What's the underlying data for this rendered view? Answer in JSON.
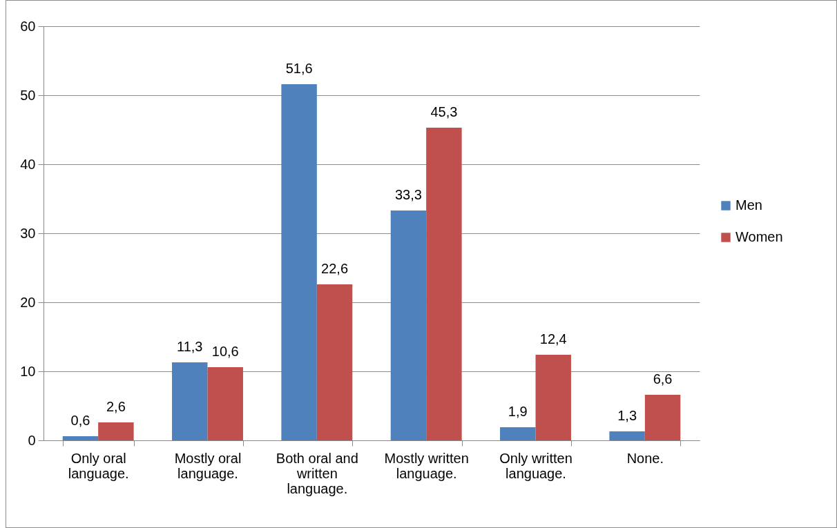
{
  "chart_data": {
    "type": "bar",
    "categories": [
      "Only oral language.",
      "Mostly oral language.",
      "Both oral and written language.",
      "Mostly written language.",
      "Only written language.",
      "None."
    ],
    "series": [
      {
        "name": "Men",
        "color": "#4f81bd",
        "values": [
          0.6,
          11.3,
          51.6,
          33.3,
          1.9,
          1.3
        ],
        "value_labels": [
          "0,6",
          "11,3",
          "51,6",
          "33,3",
          "1,9",
          "1,3"
        ]
      },
      {
        "name": "Women",
        "color": "#c0504d",
        "values": [
          2.6,
          10.6,
          22.6,
          45.3,
          12.4,
          6.6
        ],
        "value_labels": [
          "2,6",
          "10,6",
          "22,6",
          "45,3",
          "12,4",
          "6,6"
        ]
      }
    ],
    "ylim": [
      0,
      60
    ],
    "yticks": [
      0,
      10,
      20,
      30,
      40,
      50,
      60
    ],
    "grid": "y",
    "legend": "right"
  }
}
